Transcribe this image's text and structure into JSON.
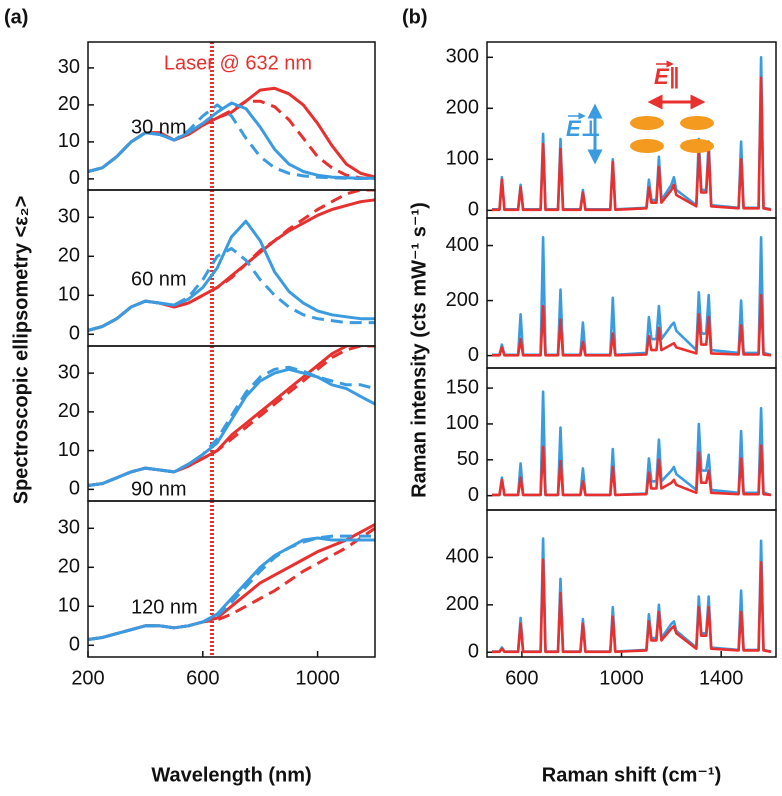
{
  "chart_data": [
    {
      "type": "line",
      "tag": "(a)",
      "label": "30 nm",
      "annotation": "Laser @ 632 nm",
      "laser_line": 632,
      "ylabel": "Spectroscopic ellipsometry <ε₂>",
      "xlim": [
        200,
        1200
      ],
      "ylim": [
        -3,
        37
      ],
      "yticks": [
        0,
        10,
        20,
        30
      ],
      "x": [
        200,
        250,
        300,
        350,
        400,
        450,
        500,
        550,
        600,
        650,
        700,
        750,
        800,
        850,
        900,
        950,
        1000,
        1050,
        1100,
        1150,
        1200
      ],
      "series": [
        {
          "color": "#e8312f",
          "dash": false,
          "values": [
            2,
            3,
            6,
            10,
            12.5,
            12.5,
            10.5,
            12,
            14.5,
            16.5,
            18,
            21,
            24,
            24.5,
            23,
            20,
            15,
            9,
            4,
            1.5,
            0.5
          ]
        },
        {
          "color": "#e8312f",
          "dash": true,
          "values": [
            2,
            3,
            6,
            10,
            12.5,
            12.5,
            10.5,
            12,
            14.5,
            16.5,
            18.5,
            21,
            21,
            19.5,
            16,
            11,
            6,
            3,
            1,
            0.3,
            0
          ]
        },
        {
          "color": "#3b9be0",
          "dash": false,
          "values": [
            2,
            3,
            6,
            10,
            12.5,
            12,
            10.5,
            12.5,
            15,
            18,
            20.5,
            19,
            14,
            8,
            4,
            2,
            1,
            0.5,
            0.3,
            0.2,
            0.2
          ]
        },
        {
          "color": "#3b9be0",
          "dash": true,
          "values": [
            2,
            3,
            6,
            10,
            12.5,
            12,
            10.5,
            13,
            17,
            20,
            17,
            11,
            6,
            3,
            1.5,
            0.8,
            0.5,
            0.3,
            0.2,
            0.1,
            0.1
          ]
        }
      ]
    },
    {
      "type": "line",
      "label": "60 nm",
      "xlim": [
        200,
        1200
      ],
      "ylim": [
        -3,
        37
      ],
      "yticks": [
        0,
        10,
        20,
        30
      ],
      "x": [
        200,
        250,
        300,
        350,
        400,
        450,
        500,
        550,
        600,
        650,
        700,
        750,
        800,
        850,
        900,
        950,
        1000,
        1050,
        1100,
        1150,
        1200
      ],
      "series": [
        {
          "color": "#e8312f",
          "dash": false,
          "values": [
            1,
            2,
            4,
            7,
            8.5,
            8,
            7,
            8,
            10,
            12,
            15,
            18,
            21,
            24,
            26.5,
            28.5,
            30.5,
            32,
            33,
            34,
            34.5
          ]
        },
        {
          "color": "#e8312f",
          "dash": true,
          "values": [
            1,
            2,
            4,
            7,
            8.5,
            8,
            7,
            8,
            10,
            12,
            14.5,
            18,
            21.5,
            24,
            27,
            29.5,
            32,
            34,
            36,
            37,
            37
          ]
        },
        {
          "color": "#3b9be0",
          "dash": false,
          "values": [
            1,
            2,
            4,
            7,
            8.5,
            8,
            7.5,
            9,
            12,
            17,
            25,
            29,
            24,
            16,
            11,
            8,
            6,
            5,
            4.5,
            4,
            4
          ]
        },
        {
          "color": "#3b9be0",
          "dash": true,
          "values": [
            1,
            2,
            4,
            7,
            8.5,
            8,
            7.5,
            9.5,
            14,
            20,
            22,
            19,
            14,
            10,
            7,
            5,
            4,
            3.5,
            3,
            3,
            3
          ]
        }
      ]
    },
    {
      "type": "line",
      "label": "90 nm",
      "xlim": [
        200,
        1200
      ],
      "ylim": [
        -3,
        37
      ],
      "yticks": [
        0,
        10,
        20,
        30
      ],
      "x": [
        200,
        250,
        300,
        350,
        400,
        450,
        500,
        550,
        600,
        650,
        700,
        750,
        800,
        850,
        900,
        950,
        1000,
        1050,
        1100,
        1150,
        1200
      ],
      "series": [
        {
          "color": "#e8312f",
          "dash": false,
          "values": [
            1,
            1.5,
            3,
            4.5,
            5.5,
            5,
            4.5,
            6,
            8,
            10,
            14,
            17,
            20,
            23,
            26,
            29,
            32,
            35,
            37,
            38,
            38
          ]
        },
        {
          "color": "#e8312f",
          "dash": true,
          "values": [
            1,
            1.5,
            3,
            4.5,
            5.5,
            5,
            4.5,
            6,
            8,
            10,
            13,
            16,
            19,
            22,
            25,
            28,
            31,
            34,
            36,
            37,
            37
          ]
        },
        {
          "color": "#3b9be0",
          "dash": false,
          "values": [
            1,
            1.5,
            3,
            4.5,
            5.5,
            5,
            4.5,
            6.5,
            9,
            12,
            18,
            24,
            28,
            30,
            31,
            30,
            29,
            27,
            26,
            24,
            22
          ]
        },
        {
          "color": "#3b9be0",
          "dash": true,
          "values": [
            1,
            1.5,
            3,
            4.5,
            5.5,
            5,
            4.5,
            6.5,
            9,
            13,
            19,
            25,
            29,
            31,
            31.5,
            30.5,
            29,
            28,
            27,
            27,
            26
          ]
        }
      ]
    },
    {
      "type": "line",
      "label": "120 nm",
      "xlabel": "Wavelength (nm)",
      "xlim": [
        200,
        1200
      ],
      "xticks": [
        200,
        600,
        1000
      ],
      "ylim": [
        -3,
        37
      ],
      "yticks": [
        0,
        10,
        20,
        30
      ],
      "x": [
        200,
        250,
        300,
        350,
        400,
        450,
        500,
        550,
        600,
        650,
        700,
        750,
        800,
        850,
        900,
        950,
        1000,
        1050,
        1100,
        1150,
        1200
      ],
      "series": [
        {
          "color": "#e8312f",
          "dash": false,
          "values": [
            1.5,
            2,
            3,
            4,
            5,
            5,
            4.5,
            5,
            6,
            7,
            10,
            13,
            16,
            18,
            20,
            22,
            24,
            25.5,
            27,
            29,
            31
          ]
        },
        {
          "color": "#e8312f",
          "dash": true,
          "values": [
            1.5,
            2,
            3,
            4,
            5,
            5,
            4.5,
            5,
            6,
            6.5,
            8,
            10,
            12,
            14,
            16.5,
            19,
            21,
            23,
            25,
            27.5,
            30
          ]
        },
        {
          "color": "#3b9be0",
          "dash": false,
          "values": [
            1.5,
            2,
            3,
            4,
            5,
            5,
            4.5,
            5,
            6,
            8,
            12,
            16,
            20,
            23,
            25,
            27,
            27.5,
            27,
            27,
            27,
            27
          ]
        },
        {
          "color": "#3b9be0",
          "dash": true,
          "values": [
            1.5,
            2,
            3,
            4,
            5,
            5,
            4.5,
            5,
            6,
            7.5,
            11,
            15,
            19,
            22.5,
            25,
            26.5,
            27.5,
            28,
            28,
            28,
            28
          ]
        }
      ]
    },
    {
      "type": "line",
      "tag": "(b)",
      "ylabel": "Raman intensity (cts mW⁻¹ s⁻¹)",
      "annotations": [
        "E∥",
        "E⊥"
      ],
      "xlim": [
        460,
        1620
      ],
      "ylim": [
        -15,
        330
      ],
      "yticks": [
        0,
        100,
        200,
        300
      ],
      "x": [
        480,
        510,
        520,
        530,
        585,
        595,
        605,
        675,
        685,
        695,
        745,
        755,
        765,
        835,
        845,
        855,
        955,
        965,
        975,
        1100,
        1110,
        1120,
        1140,
        1150,
        1160,
        1200,
        1210,
        1220,
        1300,
        1310,
        1320,
        1340,
        1350,
        1360,
        1470,
        1480,
        1490,
        1550,
        1560,
        1570,
        1600
      ],
      "series": [
        {
          "color": "#3b9be0",
          "values": [
            2,
            2,
            65,
            2,
            2,
            50,
            2,
            2,
            150,
            2,
            2,
            140,
            2,
            2,
            40,
            2,
            2,
            100,
            2,
            5,
            60,
            20,
            20,
            105,
            20,
            50,
            65,
            40,
            10,
            140,
            40,
            40,
            135,
            10,
            5,
            135,
            5,
            5,
            300,
            5,
            2
          ]
        },
        {
          "color": "#e8312f",
          "values": [
            1,
            1,
            60,
            1,
            1,
            45,
            1,
            1,
            130,
            1,
            1,
            120,
            1,
            1,
            35,
            1,
            1,
            95,
            1,
            4,
            45,
            15,
            15,
            85,
            15,
            40,
            50,
            30,
            8,
            110,
            35,
            35,
            115,
            8,
            4,
            100,
            4,
            4,
            260,
            4,
            1
          ]
        }
      ]
    },
    {
      "type": "line",
      "xlim": [
        460,
        1620
      ],
      "ylim": [
        -45,
        500
      ],
      "yticks": [
        0,
        200,
        400
      ],
      "x": [
        480,
        510,
        520,
        530,
        585,
        595,
        605,
        675,
        685,
        695,
        745,
        755,
        765,
        835,
        845,
        855,
        955,
        965,
        975,
        1100,
        1110,
        1120,
        1140,
        1150,
        1160,
        1200,
        1210,
        1220,
        1300,
        1310,
        1320,
        1340,
        1350,
        1360,
        1470,
        1480,
        1490,
        1550,
        1560,
        1570,
        1600
      ],
      "series": [
        {
          "color": "#3b9be0",
          "values": [
            3,
            3,
            40,
            3,
            3,
            150,
            3,
            3,
            430,
            3,
            3,
            240,
            3,
            3,
            120,
            3,
            3,
            210,
            3,
            10,
            140,
            60,
            60,
            180,
            60,
            110,
            120,
            90,
            20,
            230,
            80,
            80,
            220,
            20,
            10,
            200,
            10,
            10,
            430,
            10,
            3
          ]
        },
        {
          "color": "#e8312f",
          "values": [
            1,
            1,
            30,
            1,
            1,
            60,
            1,
            1,
            180,
            1,
            1,
            130,
            1,
            1,
            50,
            1,
            1,
            80,
            1,
            4,
            70,
            20,
            20,
            100,
            20,
            40,
            45,
            30,
            8,
            150,
            40,
            40,
            140,
            8,
            4,
            110,
            4,
            4,
            220,
            4,
            1
          ]
        }
      ]
    },
    {
      "type": "line",
      "xlim": [
        460,
        1620
      ],
      "ylim": [
        -20,
        178
      ],
      "yticks": [
        0,
        50,
        100,
        150
      ],
      "x": [
        480,
        510,
        520,
        530,
        585,
        595,
        605,
        675,
        685,
        695,
        745,
        755,
        765,
        835,
        845,
        855,
        955,
        965,
        975,
        1100,
        1110,
        1120,
        1140,
        1150,
        1160,
        1200,
        1210,
        1220,
        1300,
        1310,
        1320,
        1340,
        1350,
        1360,
        1470,
        1480,
        1490,
        1550,
        1560,
        1570,
        1600
      ],
      "series": [
        {
          "color": "#3b9be0",
          "values": [
            1,
            1,
            25,
            1,
            1,
            45,
            1,
            1,
            145,
            1,
            1,
            95,
            1,
            1,
            38,
            1,
            1,
            65,
            1,
            3,
            52,
            20,
            20,
            78,
            20,
            35,
            40,
            30,
            8,
            100,
            35,
            35,
            57,
            8,
            4,
            90,
            4,
            4,
            122,
            4,
            1
          ]
        },
        {
          "color": "#e8312f",
          "values": [
            1,
            1,
            22,
            1,
            1,
            25,
            1,
            1,
            68,
            1,
            1,
            48,
            1,
            1,
            20,
            1,
            1,
            40,
            1,
            2,
            32,
            10,
            10,
            50,
            10,
            18,
            22,
            15,
            4,
            60,
            18,
            18,
            35,
            4,
            2,
            52,
            2,
            2,
            70,
            2,
            1
          ]
        }
      ]
    },
    {
      "type": "line",
      "xlabel": "Raman shift (cm⁻¹)",
      "xlim": [
        460,
        1620
      ],
      "xticks": [
        600,
        1000,
        1400
      ],
      "ylim": [
        -20,
        600
      ],
      "yticks": [
        0,
        200,
        400
      ],
      "x": [
        480,
        510,
        520,
        530,
        585,
        595,
        605,
        675,
        685,
        695,
        745,
        755,
        765,
        835,
        845,
        855,
        955,
        965,
        975,
        1100,
        1110,
        1120,
        1140,
        1150,
        1160,
        1200,
        1210,
        1220,
        1300,
        1310,
        1320,
        1340,
        1350,
        1360,
        1470,
        1480,
        1490,
        1550,
        1560,
        1570,
        1600
      ],
      "series": [
        {
          "color": "#3b9be0",
          "values": [
            3,
            3,
            20,
            3,
            3,
            145,
            3,
            3,
            480,
            3,
            3,
            310,
            3,
            3,
            140,
            3,
            3,
            190,
            3,
            10,
            160,
            60,
            60,
            200,
            60,
            120,
            130,
            90,
            20,
            235,
            80,
            80,
            235,
            20,
            10,
            260,
            10,
            10,
            470,
            10,
            3
          ]
        },
        {
          "color": "#e8312f",
          "values": [
            2,
            2,
            15,
            2,
            2,
            120,
            2,
            2,
            390,
            2,
            2,
            250,
            2,
            2,
            120,
            2,
            2,
            150,
            2,
            8,
            130,
            50,
            50,
            170,
            50,
            100,
            110,
            80,
            15,
            190,
            70,
            70,
            190,
            15,
            8,
            170,
            8,
            8,
            380,
            8,
            2
          ]
        }
      ]
    }
  ]
}
